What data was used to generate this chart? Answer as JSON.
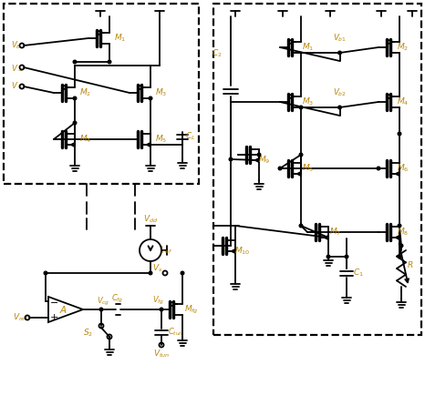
{
  "bg": "#ffffff",
  "lc": "#000000",
  "tc": "#b8860b",
  "lw": 1.3,
  "fig_w": 4.66,
  "fig_h": 4.34,
  "dpi": 100
}
